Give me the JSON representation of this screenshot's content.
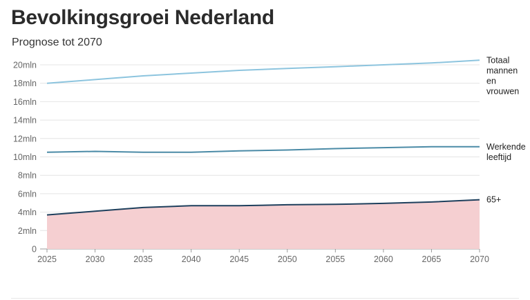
{
  "chart_data": {
    "type": "line",
    "title": "Bevolkingsgroei Nederland",
    "subtitle": "Prognose tot 2070",
    "x": [
      2025,
      2030,
      2035,
      2040,
      2045,
      2050,
      2055,
      2060,
      2065,
      2070
    ],
    "xlim": [
      2025,
      2070
    ],
    "ylim": [
      0,
      20
    ],
    "y_ticks": [
      0,
      2,
      4,
      6,
      8,
      10,
      12,
      14,
      16,
      18,
      20
    ],
    "y_tick_labels": [
      "0",
      "2mln",
      "4mln",
      "6mln",
      "8mln",
      "10mln",
      "12mln",
      "14mln",
      "16mln",
      "18mln",
      "20mln"
    ],
    "grid": true,
    "series": [
      {
        "name": "Totaal mannen en vrouwen",
        "label_lines": [
          "Totaal",
          "mannen",
          "en",
          "vrouwen"
        ],
        "values": [
          18.0,
          18.4,
          18.8,
          19.1,
          19.4,
          19.6,
          19.8,
          20.0,
          20.2,
          20.5
        ],
        "color": "#8cc4de",
        "fill": false
      },
      {
        "name": "Werkende leeftijd",
        "label_lines": [
          "Werkende",
          "leeftijd"
        ],
        "values": [
          10.5,
          10.6,
          10.5,
          10.5,
          10.65,
          10.75,
          10.9,
          11.0,
          11.1,
          11.1
        ],
        "color": "#4a8aa6",
        "fill": false
      },
      {
        "name": "65+",
        "label_lines": [
          "65+"
        ],
        "values": [
          3.7,
          4.1,
          4.5,
          4.7,
          4.7,
          4.8,
          4.85,
          4.95,
          5.1,
          5.35
        ],
        "color": "#1d3f5c",
        "fill": true,
        "fill_color": "#f5cfd1"
      }
    ]
  }
}
